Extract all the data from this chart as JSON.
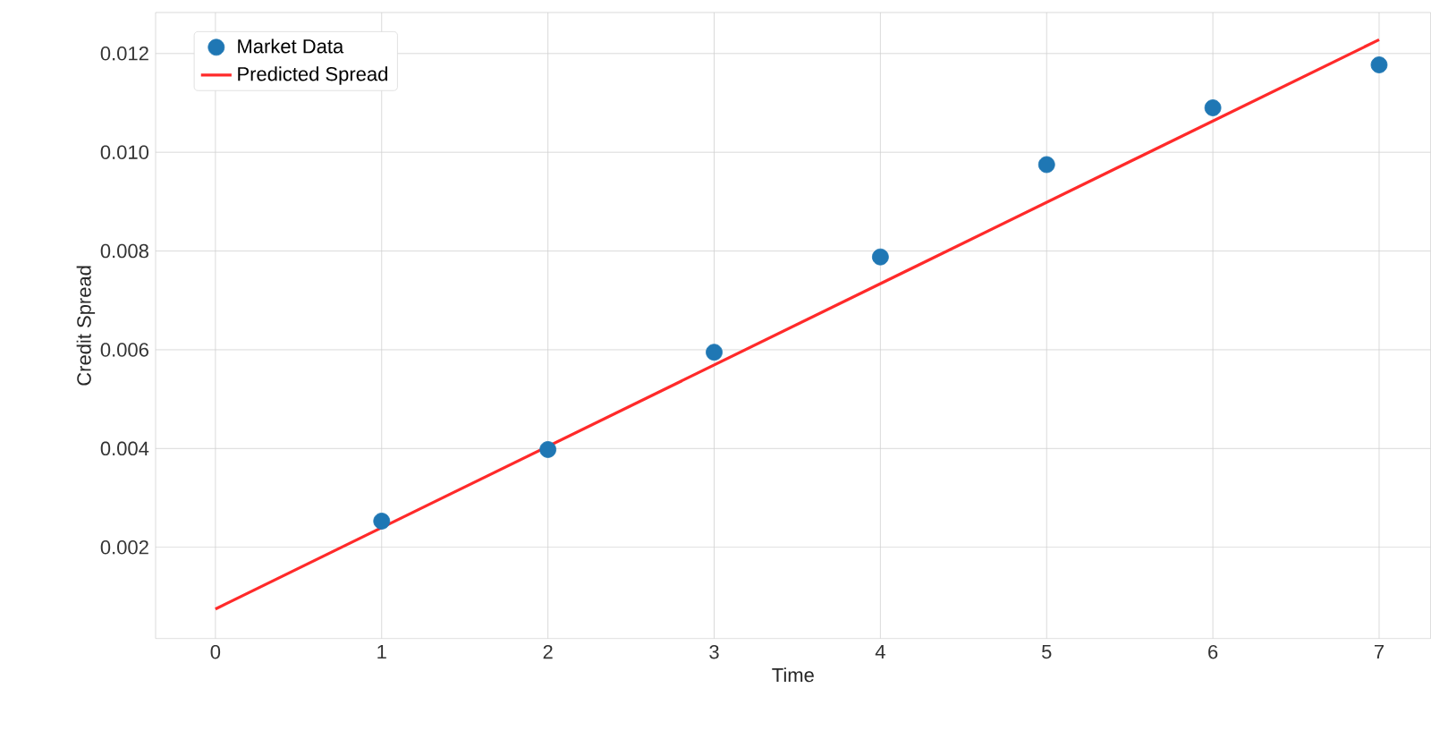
{
  "chart_data": {
    "type": "scatter",
    "xlabel": "Time",
    "ylabel": "Credit Spread",
    "series": [
      {
        "name": "Market Data",
        "color": "#1f77b4",
        "marker": "circle",
        "x": [
          1,
          2,
          3,
          4,
          5,
          6,
          7
        ],
        "values": [
          0.00253,
          0.00398,
          0.00595,
          0.00788,
          0.00975,
          0.0109,
          0.01177
        ]
      },
      {
        "name": "Predicted Spread",
        "type": "line",
        "color": "#ff2a2a",
        "marker": "none",
        "line_style": "solid",
        "x": [
          0,
          7
        ],
        "values": [
          0.00075,
          0.01228
        ]
      }
    ],
    "xlim": [
      -0.36,
      7.31
    ],
    "ylim": [
      0.00015,
      0.01283
    ],
    "xticks": [
      0,
      1,
      2,
      3,
      4,
      5,
      6,
      7
    ],
    "yticks": [
      {
        "value": 0.002,
        "label": "0.002"
      },
      {
        "value": 0.004,
        "label": "0.004"
      },
      {
        "value": 0.006,
        "label": "0.006"
      },
      {
        "value": 0.008,
        "label": "0.008"
      },
      {
        "value": 0.01,
        "label": "0.010"
      },
      {
        "value": 0.012,
        "label": "0.012"
      }
    ],
    "grid": true,
    "legend": "top left"
  }
}
